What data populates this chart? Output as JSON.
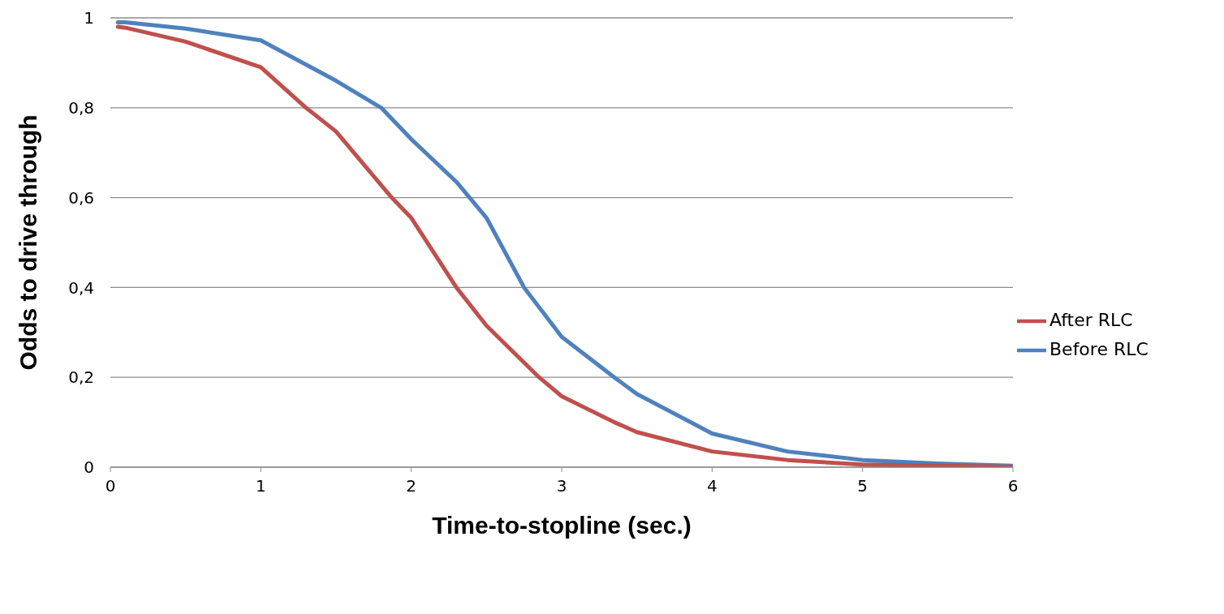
{
  "chart_data": {
    "type": "line",
    "xlabel": "Time-to-stopline (sec.)",
    "ylabel": "Odds to drive through",
    "xlim": [
      0,
      6
    ],
    "xticks": [
      0,
      1,
      2,
      3,
      4,
      5,
      6
    ],
    "ylim": [
      0,
      1
    ],
    "yticks": [
      0,
      {
        "value": 0.2,
        "label": "0,2"
      },
      {
        "value": 0.4,
        "label": "0,4"
      },
      {
        "value": 0.6,
        "label": "0,6"
      },
      {
        "value": 0.8,
        "label": "0,8"
      },
      1
    ],
    "grid": "y",
    "legend": "right",
    "marker": "none",
    "line_style": "solid",
    "series": [
      {
        "name": "Before RLC",
        "color": "#4f81bd",
        "x": [
          0.05,
          0.1,
          0.5,
          1,
          1.5,
          1.8,
          2,
          2.3,
          2.5,
          2.75,
          3,
          3.35,
          3.5,
          4,
          4.5,
          5,
          5.5,
          6
        ],
        "values": [
          0.99,
          0.99,
          0.976,
          0.95,
          0.86,
          0.8,
          0.73,
          0.635,
          0.555,
          0.4,
          0.29,
          0.2,
          0.163,
          0.075,
          0.035,
          0.016,
          0.008,
          0.003
        ]
      },
      {
        "name": "After RLC",
        "color": "#c0504d",
        "x": [
          0.05,
          0.1,
          0.5,
          1,
          1.3,
          1.5,
          1.87,
          2,
          2.3,
          2.5,
          2.85,
          3,
          3.35,
          3.5,
          4,
          4.5,
          5,
          5.5,
          6
        ],
        "values": [
          0.98,
          0.978,
          0.947,
          0.89,
          0.8,
          0.747,
          0.6,
          0.555,
          0.4,
          0.315,
          0.2,
          0.158,
          0.1,
          0.078,
          0.035,
          0.016,
          0.006,
          0.003,
          0.001
        ]
      }
    ]
  }
}
